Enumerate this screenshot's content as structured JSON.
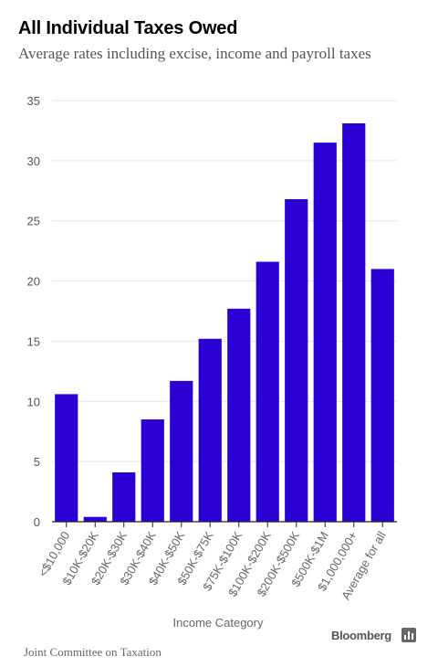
{
  "chart_data": {
    "type": "bar",
    "title": "All Individual Taxes Owed",
    "subtitle": "Average rates including excise, income and payroll taxes",
    "xlabel": "Income Category",
    "ylabel": "",
    "categories": [
      "<$10,000",
      "$10K-$20K",
      "$20K-$30K",
      "$30K-$40K",
      "$40K-$50K",
      "$50K-$75K",
      "$75K-$100K",
      "$100K-$200K",
      "$200K-$500K",
      "$500K-$1M",
      "$1,000,000+",
      "Average for all"
    ],
    "values": [
      10.6,
      0.4,
      4.1,
      8.5,
      11.7,
      15.2,
      17.7,
      21.6,
      26.8,
      31.5,
      33.1,
      21.0
    ],
    "ylim": [
      0,
      35
    ],
    "yticks": [
      0,
      5,
      10,
      15,
      20,
      25,
      30,
      35
    ],
    "grid": true,
    "bar_color": "#2a00d5"
  },
  "footer": {
    "source": "Joint Committee on Taxation",
    "brand": "Bloomberg",
    "brand_icon": "bloomberg-chart-icon"
  }
}
